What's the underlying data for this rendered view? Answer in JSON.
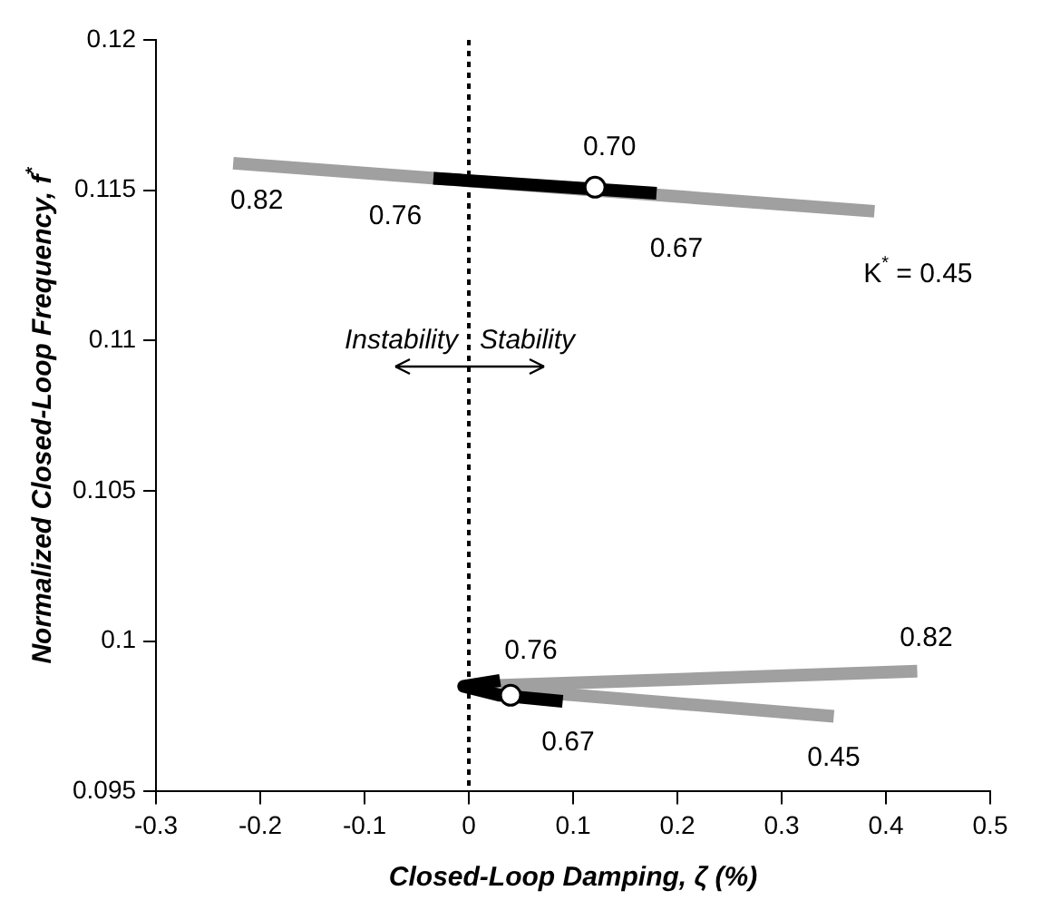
{
  "chart_data": {
    "type": "line",
    "xlabel": "Closed-Loop Damping, ζ (%)",
    "ylabel": "Normalized Closed-Loop Frequency, f$^{*}$",
    "xlim": [
      -0.3,
      0.5
    ],
    "xticks": [
      -0.3,
      -0.2,
      -0.1,
      0,
      0.1,
      0.2,
      0.3,
      0.4,
      0.5
    ],
    "ylim": [
      0.095,
      0.12
    ],
    "yticks": [
      0.095,
      0.1,
      0.105,
      0.11,
      0.115,
      0.12
    ],
    "grid": false,
    "legend": false,
    "line_style": "solid",
    "series": [
      {
        "color": "#a0a0a0",
        "x": [
          -0.226,
          0.389
        ],
        "values": [
          0.1159,
          0.1143
        ]
      },
      {
        "color": "#a0a0a0",
        "x": [
          0,
          0.43
        ],
        "values": [
          0.0985,
          0.099
        ]
      },
      {
        "color": "#a0a0a0",
        "x": [
          0,
          0.35
        ],
        "values": [
          0.0985,
          0.0975
        ]
      },
      {
        "color": "#000000",
        "x": [
          -0.034,
          0.18
        ],
        "values": [
          0.1154,
          0.1149
        ]
      },
      {
        "color": "#000000",
        "x": [
          0.03,
          -0.005,
          0.03,
          0.09
        ],
        "values": [
          0.0987,
          0.0985,
          0.0982,
          0.098
        ]
      },
      {
        "type": "scatter",
        "marker": "circle",
        "color": "#ffffff",
        "x": [
          0.121,
          0.04
        ],
        "values": [
          0.1151,
          0.0982
        ]
      }
    ],
    "ref_lines": [
      {
        "axis": "x",
        "value": 0,
        "color": "#000000",
        "line_style": "dotted"
      }
    ],
    "annotations": [
      {
        "text": "0.82",
        "x": -0.226,
        "y": 0.1159
      },
      {
        "text": "0.76",
        "x": -0.034,
        "y": 0.1154
      },
      {
        "text": "0.70",
        "x": 0.121,
        "y": 0.1151
      },
      {
        "text": "0.67",
        "x": 0.18,
        "y": 0.1149
      },
      {
        "text": "K$^{*}$ = 0.45",
        "x": 0.389,
        "y": 0.1143
      },
      {
        "text": "0.76",
        "x": 0.03,
        "y": 0.0987
      },
      {
        "text": "0.82",
        "x": 0.43,
        "y": 0.099
      },
      {
        "text": "0.67",
        "x": 0.09,
        "y": 0.098
      },
      {
        "text": "0.45",
        "x": 0.35,
        "y": 0.0975
      },
      "Instability",
      "Stability"
    ]
  }
}
